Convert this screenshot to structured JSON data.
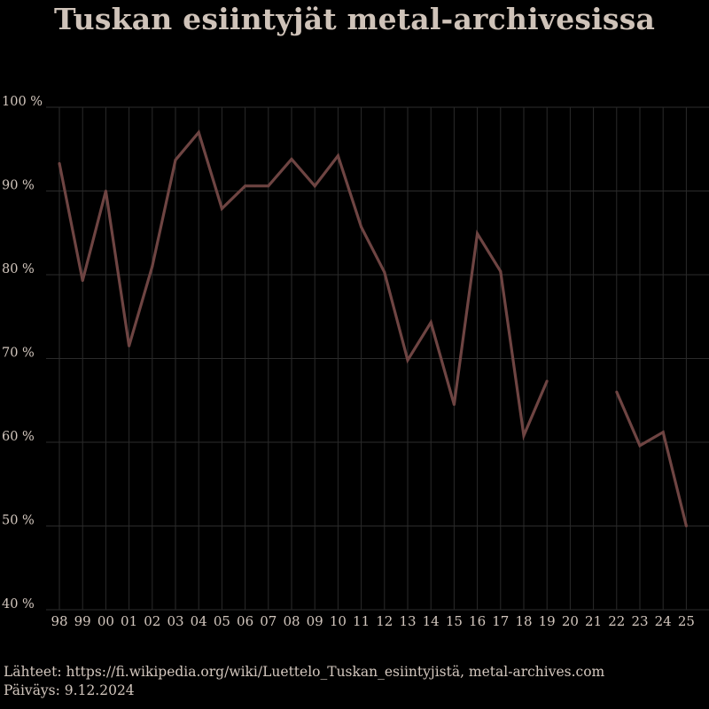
{
  "chart_data": {
    "type": "line",
    "title": "Tuskan esiintyjät metal-archivesissa",
    "xlabel": "",
    "ylabel": "",
    "categories": [
      "98",
      "99",
      "00",
      "01",
      "02",
      "03",
      "04",
      "05",
      "06",
      "07",
      "08",
      "09",
      "10",
      "11",
      "12",
      "13",
      "14",
      "15",
      "16",
      "17",
      "18",
      "19",
      "20",
      "21",
      "22",
      "23",
      "24",
      "25"
    ],
    "series": [
      {
        "values": [
          93.3,
          79.3,
          90.0,
          71.5,
          81.0,
          93.7,
          97.0,
          87.9,
          90.6,
          90.6,
          93.8,
          90.6,
          94.2,
          85.7,
          80.3,
          69.8,
          74.3,
          64.5,
          84.9,
          80.4,
          60.8,
          67.3,
          null,
          null,
          66.0,
          59.6,
          61.2,
          50.0
        ]
      }
    ],
    "ylim": [
      40,
      100
    ],
    "yticks": [
      40,
      50,
      60,
      70,
      80,
      90,
      100
    ],
    "ytick_labels": [
      "40 %",
      "50 %",
      "60 %",
      "70 %",
      "80 %",
      "90 %",
      "100 %"
    ],
    "grid": true,
    "legend": "none"
  },
  "colors": {
    "background": "#000000",
    "line": "#6e4442",
    "grid": "#2b2b2b",
    "text": "#d2c6bd"
  },
  "footer": {
    "sources": "Lähteet: https://fi.wikipedia.org/wiki/Luettelo_Tuskan_esiintyjistä, metal-archives.com",
    "date": "Päiväys: 9.12.2024"
  }
}
